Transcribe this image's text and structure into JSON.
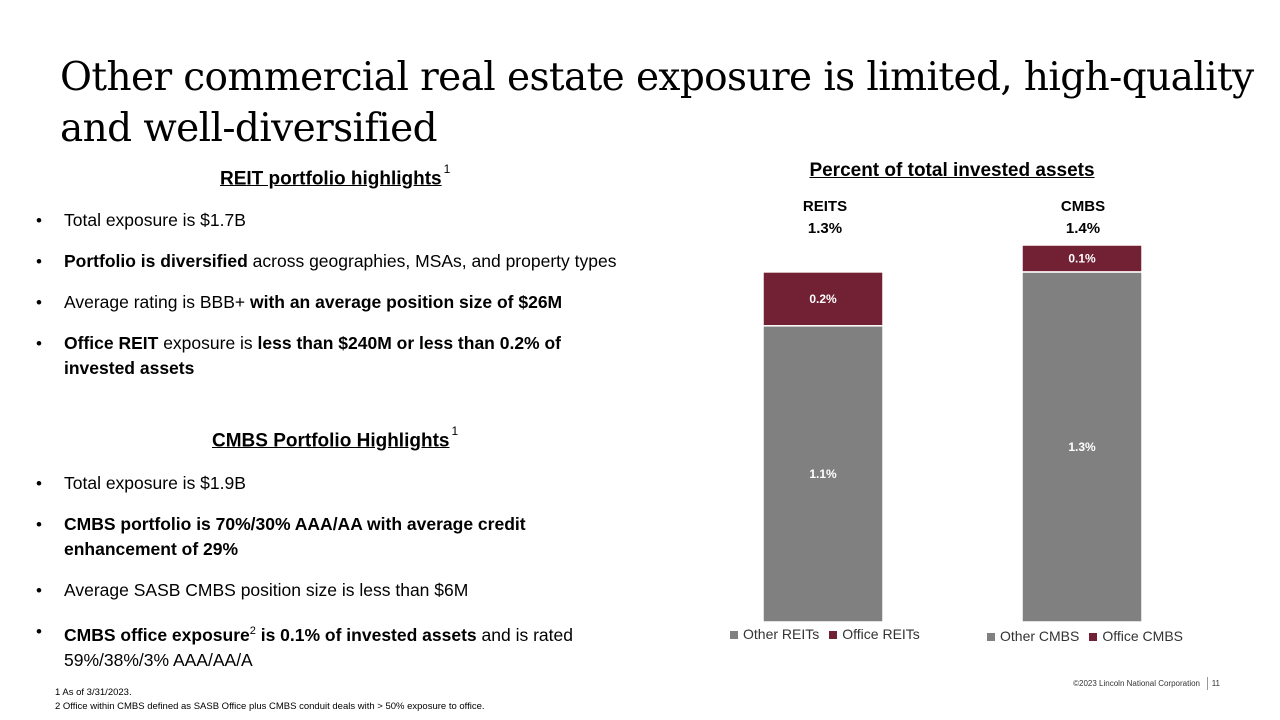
{
  "title": "Other commercial real estate exposure is limited, high-quality and well-diversified",
  "reit": {
    "heading": "REIT portfolio highlights",
    "heading_sup": "1",
    "b1": "Total exposure is $1.7B",
    "b2_bold": "Portfolio is diversified",
    "b2_rest": " across geographies, MSAs, and property types",
    "b3_plain": "Average rating is BBB+ ",
    "b3_bold": "with an average position size of $26M",
    "b4_bold1": "Office REIT",
    "b4_plain": " exposure is ",
    "b4_bold2": "less than $240M or less than 0.2% of invested assets"
  },
  "cmbs": {
    "heading": "CMBS Portfolio Highlights",
    "heading_sup": "1",
    "b1": "Total exposure is $1.9B",
    "b2_bold": "CMBS portfolio is 70%/30% AAA/AA with average credit enhancement of 29%",
    "b3": "Average SASB CMBS position size is less than $6M",
    "b4_bold1": "CMBS office exposure",
    "b4_sup": "2",
    "b4_bold2": " is 0.1% of invested assets",
    "b4_plain": " and is rated 59%/38%/3% AAA/AA/A"
  },
  "chart_data": {
    "type": "bar",
    "stacked": true,
    "title": "Percent of total invested assets",
    "categories": [
      "REITS",
      "CMBS"
    ],
    "totals": [
      "1.3%",
      "1.4%"
    ],
    "series": [
      {
        "name": "Other",
        "values": [
          1.1,
          1.3
        ],
        "labels": [
          "1.1%",
          "1.3%"
        ],
        "color": "#808080"
      },
      {
        "name": "Office",
        "values": [
          0.2,
          0.1
        ],
        "labels": [
          "0.2%",
          "0.1%"
        ],
        "color": "#722033"
      }
    ],
    "legends": [
      [
        "Other REITs",
        "Office REITs"
      ],
      [
        "Other CMBS",
        "Office CMBS"
      ]
    ]
  },
  "footnotes": {
    "f1": "1 As of 3/31/2023.",
    "f2": "2 Office within CMBS defined as SASB Office plus CMBS conduit deals with > 50% exposure to office."
  },
  "copyright": "©2023 Lincoln National Corporation",
  "page_number": "11"
}
